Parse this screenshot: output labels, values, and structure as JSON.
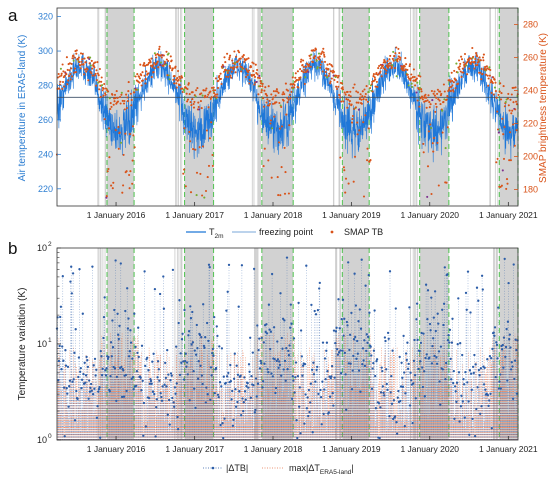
{
  "chart_data": [
    {
      "panel_letter": "a",
      "type": "line",
      "ylabel_left": "Air temperature in ERA5-land (K)",
      "ylabel_right": "SMAP brightness temperature (K)",
      "ylim_left": [
        210,
        325
      ],
      "yticks_left": [
        "220",
        "240",
        "260",
        "280",
        "300",
        "320"
      ],
      "ylim_right": [
        170,
        290
      ],
      "yticks_right": [
        "180",
        "200",
        "220",
        "240",
        "260",
        "280"
      ],
      "xlim": [
        "2015-04-01",
        "2021-02-15"
      ],
      "xtick_labels": [
        "1 January 2016",
        "1 January 2017",
        "1 January 2018",
        "1 January 2019",
        "1 January 2020",
        "1 January 2021"
      ],
      "freezing_point": 273.15,
      "shaded_periods": [
        [
          "2015-11-20",
          "2016-03-25"
        ],
        [
          "2016-11-15",
          "2017-03-30"
        ],
        [
          "2017-11-10",
          "2018-04-05"
        ],
        [
          "2018-11-20",
          "2019-03-25"
        ],
        [
          "2019-11-15",
          "2020-03-30"
        ],
        [
          "2020-11-20",
          "2021-02-15"
        ]
      ],
      "series": [
        {
          "name": "T",
          "name_sub": "2m",
          "axis": "left",
          "style": "line",
          "color": "#1f77d8",
          "mean": 272,
          "amplitude": 19,
          "peak_day_of_year": 200,
          "noise": 7
        },
        {
          "name": "freezing point",
          "axis": "left",
          "style": "hline",
          "color": "#7aa7d9"
        },
        {
          "name": "SMAP TB",
          "axis": "right",
          "style": "dots",
          "color": "#d95319",
          "mean": 246,
          "amplitude": 12,
          "peak_day_of_year": 200,
          "scatter": 9,
          "low_outliers": [
            175,
            235
          ]
        }
      ],
      "point_marker_colors": [
        "#77ac30",
        "#7e2f8e"
      ],
      "legend_position": "bottom-center",
      "grid": false
    },
    {
      "panel_letter": "b",
      "type": "scatter",
      "yscale": "log",
      "ylabel": "Temperature variation (K)",
      "ylim": [
        1,
        100
      ],
      "ytick_labels": [
        "10",
        "10",
        "10"
      ],
      "ytick_exponents": [
        "0",
        "1",
        "2"
      ],
      "xlim": [
        "2015-04-01",
        "2021-02-15"
      ],
      "xtick_labels": [
        "1 January 2016",
        "1 January 2017",
        "1 January 2018",
        "1 January 2019",
        "1 January 2020",
        "1 January 2021"
      ],
      "series": [
        {
          "name": "|ΔTB|",
          "style": "dotted-stem-marker",
          "color": "#2c5da8",
          "range": [
            1,
            85
          ]
        },
        {
          "name": "max|ΔT",
          "name_sub": "ERA5-land",
          "name_suffix": "|",
          "style": "dotted-stem",
          "color": "#e8744a",
          "range": [
            1,
            15
          ]
        }
      ],
      "legend_position": "bottom-center",
      "grid": false
    }
  ]
}
